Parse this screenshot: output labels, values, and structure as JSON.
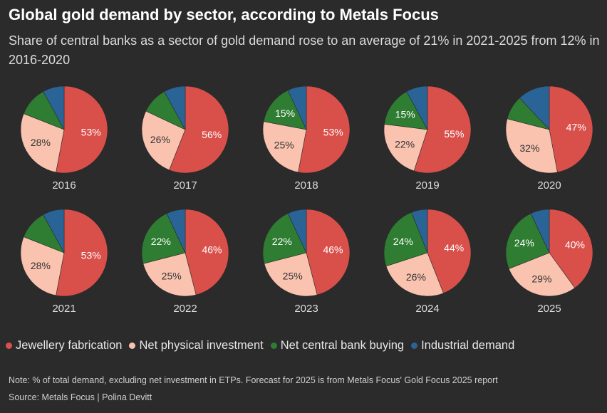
{
  "title": "Global gold demand by sector, according to Metals Focus",
  "subtitle": "Share of central banks as a sector of gold demand rose to an average of 21% in 2021-2025 from 12% in 2016-2020",
  "legend": [
    {
      "label": "Jewellery fabrication",
      "color": "#d9504b"
    },
    {
      "label": "Net physical investment",
      "color": "#f9c3b0"
    },
    {
      "label": "Net central bank buying",
      "color": "#2e7d32"
    },
    {
      "label": "Industrial demand",
      "color": "#2a6496"
    }
  ],
  "note": "Note: % of total demand, excluding net investment in ETPs. Forecast for 2025 is from Metals Focus' Gold Focus 2025 report",
  "source": "Source: Metals Focus | Polina Devitt",
  "chart_data": {
    "type": "pie",
    "title": "Global gold demand by sector, according to Metals Focus",
    "series_names": [
      "Jewellery fabrication",
      "Net physical investment",
      "Net central bank buying",
      "Industrial demand"
    ],
    "colors": [
      "#d9504b",
      "#f9c3b0",
      "#2e7d32",
      "#2a6496"
    ],
    "label_colors": [
      "#ffffff",
      "#333333",
      "#ffffff",
      "#ffffff"
    ],
    "pies": [
      {
        "year": "2016",
        "values": [
          53,
          28,
          11,
          8
        ],
        "labels": [
          "53%",
          "28%",
          "",
          ""
        ]
      },
      {
        "year": "2017",
        "values": [
          56,
          26,
          10,
          8
        ],
        "labels": [
          "56%",
          "26%",
          "",
          ""
        ]
      },
      {
        "year": "2018",
        "values": [
          53,
          25,
          15,
          7
        ],
        "labels": [
          "53%",
          "25%",
          "15%",
          ""
        ]
      },
      {
        "year": "2019",
        "values": [
          55,
          22,
          15,
          8
        ],
        "labels": [
          "55%",
          "22%",
          "15%",
          ""
        ]
      },
      {
        "year": "2020",
        "values": [
          47,
          32,
          9,
          12
        ],
        "labels": [
          "47%",
          "32%",
          "",
          ""
        ]
      },
      {
        "year": "2021",
        "values": [
          53,
          28,
          11,
          8
        ],
        "labels": [
          "53%",
          "28%",
          "",
          ""
        ]
      },
      {
        "year": "2022",
        "values": [
          46,
          25,
          22,
          7
        ],
        "labels": [
          "46%",
          "25%",
          "22%",
          ""
        ]
      },
      {
        "year": "2023",
        "values": [
          46,
          25,
          22,
          7
        ],
        "labels": [
          "46%",
          "25%",
          "22%",
          ""
        ]
      },
      {
        "year": "2024",
        "values": [
          44,
          26,
          24,
          6
        ],
        "labels": [
          "44%",
          "26%",
          "24%",
          ""
        ]
      },
      {
        "year": "2025",
        "values": [
          40,
          29,
          24,
          7
        ],
        "labels": [
          "40%",
          "29%",
          "24%",
          ""
        ]
      }
    ]
  }
}
